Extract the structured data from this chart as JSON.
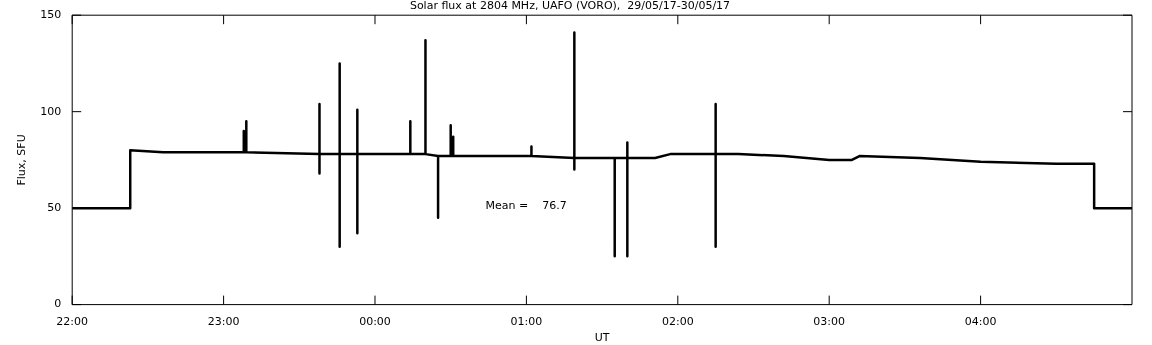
{
  "chart_data": {
    "type": "line",
    "title": "Solar flux at 2804 MHz, UAFO (VORO),  29/05/17-30/05/17",
    "xlabel": "UT",
    "ylabel": "Flux, SFU",
    "xlim": [
      "--05-29T22:00",
      "--05-30T05:00"
    ],
    "xticks": [
      {
        "value": "--05-29T22:00",
        "label": "22:00"
      },
      {
        "value": "--05-29T23:00",
        "label": "23:00"
      },
      {
        "value": "--05-30T00:00",
        "label": "00:00"
      },
      {
        "value": "--05-30T01:00",
        "label": "01:00"
      },
      {
        "value": "--05-30T02:00",
        "label": "02:00"
      },
      {
        "value": "--05-30T03:00",
        "label": "03:00"
      },
      {
        "value": "--05-30T04:00",
        "label": "04:00"
      }
    ],
    "ylim": [
      0,
      150
    ],
    "yticks": [
      0,
      50,
      100,
      150
    ],
    "grid": false,
    "marker": "none",
    "line_style": "solid",
    "annotations": [
      "Mean =    76.7"
    ],
    "series": [
      {
        "color": "#000000",
        "x": [
          "--05-29T22:00",
          "--05-29T22:23",
          "--05-29T22:23",
          "--05-29T22:36",
          "--05-29T23:08",
          "--05-29T23:08",
          "--05-29T23:08",
          "--05-29T23:09",
          "--05-29T23:09",
          "--05-29T23:09",
          "--05-29T23:38",
          "--05-29T23:38",
          "--05-29T23:38",
          "--05-29T23:38",
          "--05-29T23:46",
          "--05-29T23:46",
          "--05-29T23:46",
          "--05-29T23:46",
          "--05-29T23:53",
          "--05-29T23:53",
          "--05-29T23:53",
          "--05-29T23:53",
          "--05-30T00:14",
          "--05-30T00:14",
          "--05-30T00:14",
          "--05-30T00:20",
          "--05-30T00:20",
          "--05-30T00:20",
          "--05-30T00:25",
          "--05-30T00:25",
          "--05-30T00:25",
          "--05-30T00:30",
          "--05-30T00:30",
          "--05-30T00:30",
          "--05-30T00:31",
          "--05-30T00:31",
          "--05-30T00:31",
          "--05-30T01:02",
          "--05-30T01:02",
          "--05-30T01:02",
          "--05-30T01:19",
          "--05-30T01:19",
          "--05-30T01:19",
          "--05-30T01:19",
          "--05-30T01:35",
          "--05-30T01:35",
          "--05-30T01:35",
          "--05-30T01:40",
          "--05-30T01:40",
          "--05-30T01:40",
          "--05-30T01:40",
          "--05-30T01:51",
          "--05-30T01:57",
          "--05-30T02:15",
          "--05-30T02:15",
          "--05-30T02:15",
          "--05-30T02:15",
          "--05-30T02:24",
          "--05-30T02:42",
          "--05-30T03:00",
          "--05-30T03:09",
          "--05-30T03:12",
          "--05-30T03:36",
          "--05-30T04:00",
          "--05-30T04:30",
          "--05-30T04:45",
          "--05-30T04:45",
          "--05-30T05:00"
        ],
        "values": [
          50,
          50,
          80,
          79,
          79,
          90,
          79,
          79,
          95,
          79,
          78,
          104,
          68,
          78,
          78,
          125,
          30,
          78,
          78,
          101,
          37,
          78,
          78,
          95,
          78,
          78,
          137,
          78,
          77,
          45,
          77,
          77,
          93,
          77,
          77,
          87,
          77,
          77,
          82,
          77,
          76,
          141,
          70,
          76,
          76,
          25,
          76,
          76,
          84,
          25,
          76,
          76,
          78,
          78,
          104,
          30,
          78,
          78,
          77,
          75,
          75,
          77,
          76,
          74,
          73,
          73,
          50,
          50
        ]
      }
    ]
  }
}
